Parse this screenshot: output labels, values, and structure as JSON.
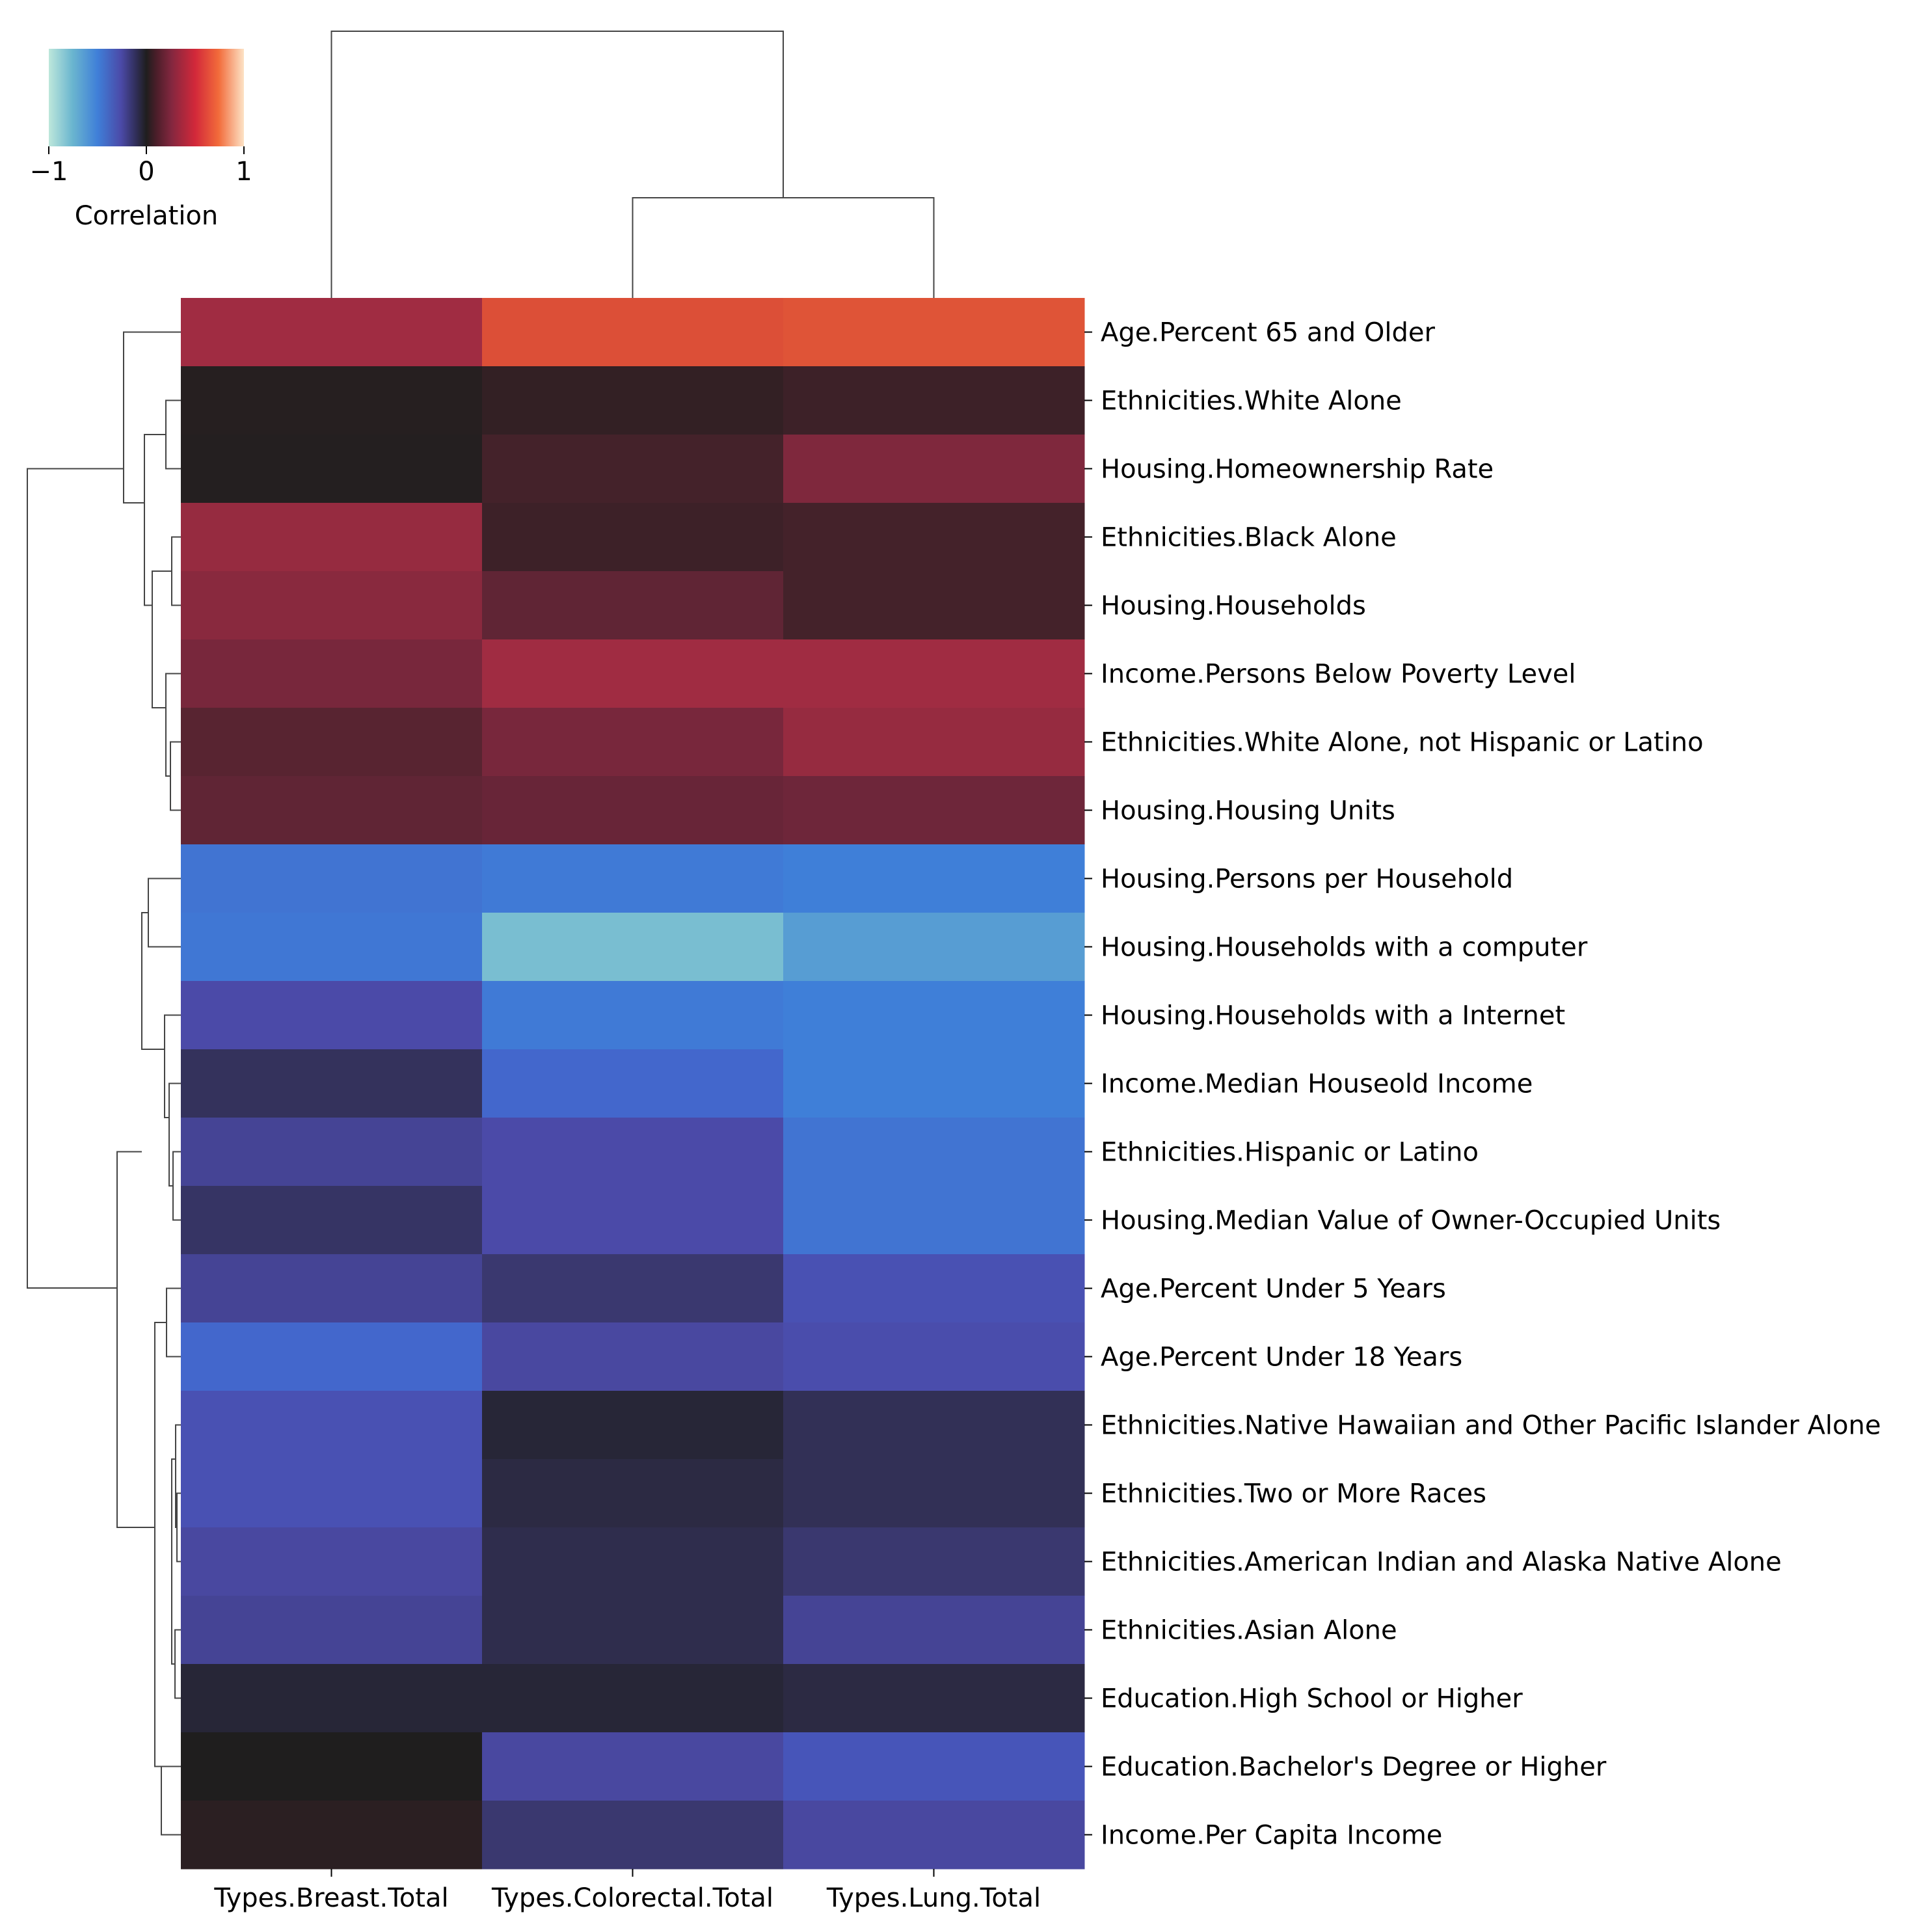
{
  "chart_data": {
    "type": "heatmap",
    "title": "",
    "columns": [
      "Types.Breast.Total",
      "Types.Colorectal.Total",
      "Types.Lung.Total"
    ],
    "rows": [
      "Age.Percent 65 and Older",
      "Ethnicities.White Alone",
      "Housing.Homeownership Rate",
      "Ethnicities.Black Alone",
      "Housing.Households",
      "Income.Persons Below Poverty Level",
      "Ethnicities.White Alone, not Hispanic or Latino",
      "Housing.Housing Units",
      "Housing.Persons per Household",
      "Housing.Households with a computer",
      "Housing.Households with a Internet",
      "Income.Median Houseold Income",
      "Ethnicities.Hispanic or Latino",
      "Housing.Median Value of Owner-Occupied Units",
      "Age.Percent Under 5 Years",
      "Age.Percent Under 18 Years",
      "Ethnicities.Native Hawaiian and Other Pacific Islander Alone",
      "Ethnicities.Two or More Races",
      "Ethnicities.American Indian and Alaska Native Alone",
      "Ethnicities.Asian Alone",
      "Education.High School or Higher",
      "Education.Bachelor's Degree or Higher",
      "Income.Per Capita Income"
    ],
    "values": [
      [
        0.45,
        0.7,
        0.72
      ],
      [
        0.03,
        0.08,
        0.12
      ],
      [
        0.02,
        0.15,
        0.35
      ],
      [
        0.42,
        0.12,
        0.15
      ],
      [
        0.38,
        0.25,
        0.15
      ],
      [
        0.33,
        0.45,
        0.45
      ],
      [
        0.22,
        0.33,
        0.42
      ],
      [
        0.25,
        0.28,
        0.3
      ],
      [
        -0.68,
        -0.72,
        -0.75
      ],
      [
        -0.7,
        -0.9,
        -0.82
      ],
      [
        -0.4,
        -0.72,
        -0.75
      ],
      [
        -0.2,
        -0.6,
        -0.75
      ],
      [
        -0.35,
        -0.4,
        -0.68
      ],
      [
        -0.22,
        -0.4,
        -0.68
      ],
      [
        -0.35,
        -0.25,
        -0.45
      ],
      [
        -0.6,
        -0.38,
        -0.42
      ],
      [
        -0.45,
        -0.08,
        -0.18
      ],
      [
        -0.45,
        -0.12,
        -0.18
      ],
      [
        -0.38,
        -0.15,
        -0.25
      ],
      [
        -0.35,
        -0.15,
        -0.35
      ],
      [
        -0.08,
        -0.08,
        -0.12
      ],
      [
        0.0,
        -0.38,
        -0.48
      ],
      [
        0.05,
        -0.25,
        -0.38
      ]
    ],
    "colorbar": {
      "label": "Correlation",
      "range": [
        -1,
        1
      ],
      "ticks": [
        "−1",
        "0",
        "1"
      ],
      "colormap": "icefire",
      "placement": "top-left"
    },
    "row_dendrogram": true,
    "column_dendrogram": true,
    "grid": false
  }
}
